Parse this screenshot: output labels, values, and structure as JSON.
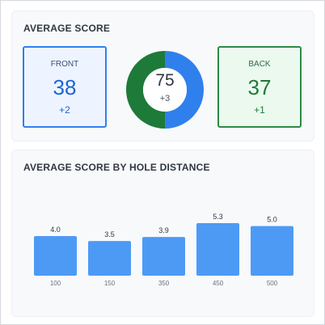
{
  "summary": {
    "title": "AVERAGE SCORE",
    "front": {
      "label": "FRONT",
      "value": "38",
      "delta": "+2"
    },
    "total": {
      "value": "75",
      "delta": "+3"
    },
    "back": {
      "label": "BACK",
      "value": "37",
      "delta": "+1"
    },
    "colors": {
      "front": "#2f80ed",
      "back": "#2d8a46"
    }
  },
  "chart_data": {
    "type": "bar",
    "title": "AVERAGE SCORE BY HOLE DISTANCE",
    "categories": [
      "100",
      "150",
      "350",
      "450",
      "500"
    ],
    "values": [
      4.0,
      3.5,
      3.9,
      5.3,
      5.0
    ],
    "value_labels": [
      "4.0",
      "3.5",
      "3.9",
      "5.3",
      "5.0"
    ],
    "xlabel": "",
    "ylabel": "",
    "ylim": [
      0,
      5.3
    ],
    "grid": false,
    "color": "#4d9af5"
  }
}
